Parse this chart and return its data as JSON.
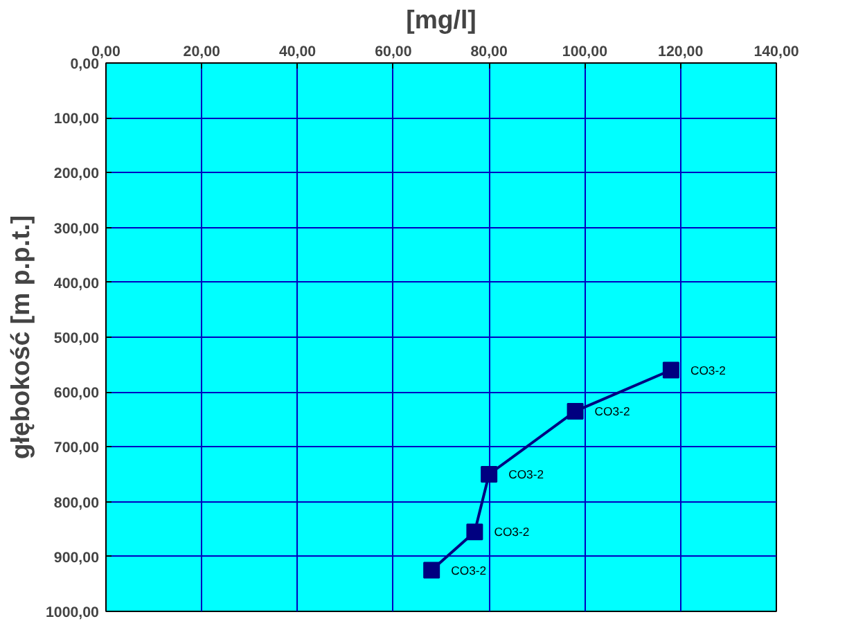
{
  "chart_data": {
    "type": "line",
    "xlabel": "[mg/l]",
    "ylabel": "głębokość [m p.p.t.]",
    "x": [
      118,
      98,
      80,
      77,
      68
    ],
    "series": [
      {
        "color": "#000080",
        "values": [
          560,
          635,
          750,
          855,
          925
        ]
      }
    ],
    "marker": "square",
    "line_style": "solid",
    "grid": true,
    "xlim": [
      0,
      140
    ],
    "ylim": [
      1000,
      0
    ],
    "xticks": [
      {
        "value": 0,
        "label": "0,00"
      },
      {
        "value": 20,
        "label": "20,00"
      },
      {
        "value": 40,
        "label": "40,00"
      },
      {
        "value": 60,
        "label": "60,00"
      },
      {
        "value": 80,
        "label": "80,00"
      },
      {
        "value": 100,
        "label": "100,00"
      },
      {
        "value": 120,
        "label": "120,00"
      },
      {
        "value": 140,
        "label": "140,00"
      }
    ],
    "yticks": [
      {
        "value": 0,
        "label": "0,00"
      },
      {
        "value": 100,
        "label": "100,00"
      },
      {
        "value": 200,
        "label": "200,00"
      },
      {
        "value": 300,
        "label": "300,00"
      },
      {
        "value": 400,
        "label": "400,00"
      },
      {
        "value": 500,
        "label": "500,00"
      },
      {
        "value": 600,
        "label": "600,00"
      },
      {
        "value": 700,
        "label": "700,00"
      },
      {
        "value": 800,
        "label": "800,00"
      },
      {
        "value": 900,
        "label": "900,00"
      },
      {
        "value": 1000,
        "label": "1000,00"
      }
    ],
    "annotations": [
      {
        "text": "CO3-2",
        "x": 118,
        "y": 560
      },
      {
        "text": "CO3-2",
        "x": 98,
        "y": 635
      },
      {
        "text": "CO3-2",
        "x": 80,
        "y": 750
      },
      {
        "text": "CO3-2",
        "x": 77,
        "y": 855
      },
      {
        "text": "CO3-2",
        "x": 68,
        "y": 925
      }
    ]
  }
}
